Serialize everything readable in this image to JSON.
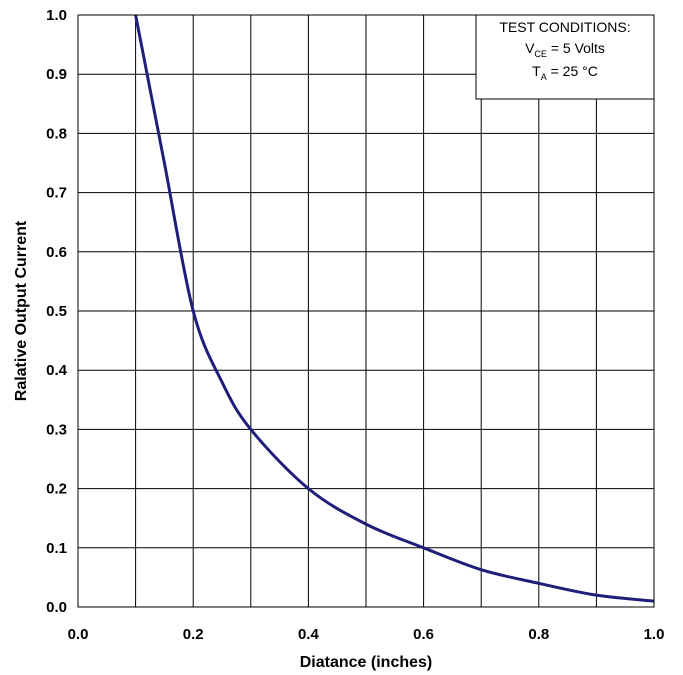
{
  "chart_data": {
    "type": "line",
    "xlabel": "Diatance (inches)",
    "ylabel": "Ralative Output Current",
    "xlim": [
      0.0,
      1.0
    ],
    "ylim": [
      0.0,
      1.0
    ],
    "x_ticks": [
      "0.0",
      "0.2",
      "0.4",
      "0.6",
      "0.8",
      "1.0"
    ],
    "y_ticks": [
      "0.0",
      "0.1",
      "0.2",
      "0.3",
      "0.4",
      "0.5",
      "0.6",
      "0.7",
      "0.8",
      "0.9",
      "1.0"
    ],
    "grid": true,
    "legend_position": "top-right",
    "series": [
      {
        "color": "#1f1f7a",
        "x": [
          0.1,
          0.12,
          0.15,
          0.2,
          0.25,
          0.3,
          0.4,
          0.5,
          0.6,
          0.7,
          0.8,
          0.9,
          1.0
        ],
        "y": [
          1.0,
          0.9,
          0.75,
          0.5,
          0.38,
          0.3,
          0.2,
          0.14,
          0.1,
          0.063,
          0.04,
          0.02,
          0.01
        ]
      }
    ],
    "test_conditions": {
      "heading": "TEST CONDITIONS:",
      "vce_symbol": "V",
      "vce_sub": "CE",
      "vce_value": " = 5 Volts",
      "ta_symbol": "T",
      "ta_sub": "A",
      "ta_value": " =  25 °C"
    }
  }
}
